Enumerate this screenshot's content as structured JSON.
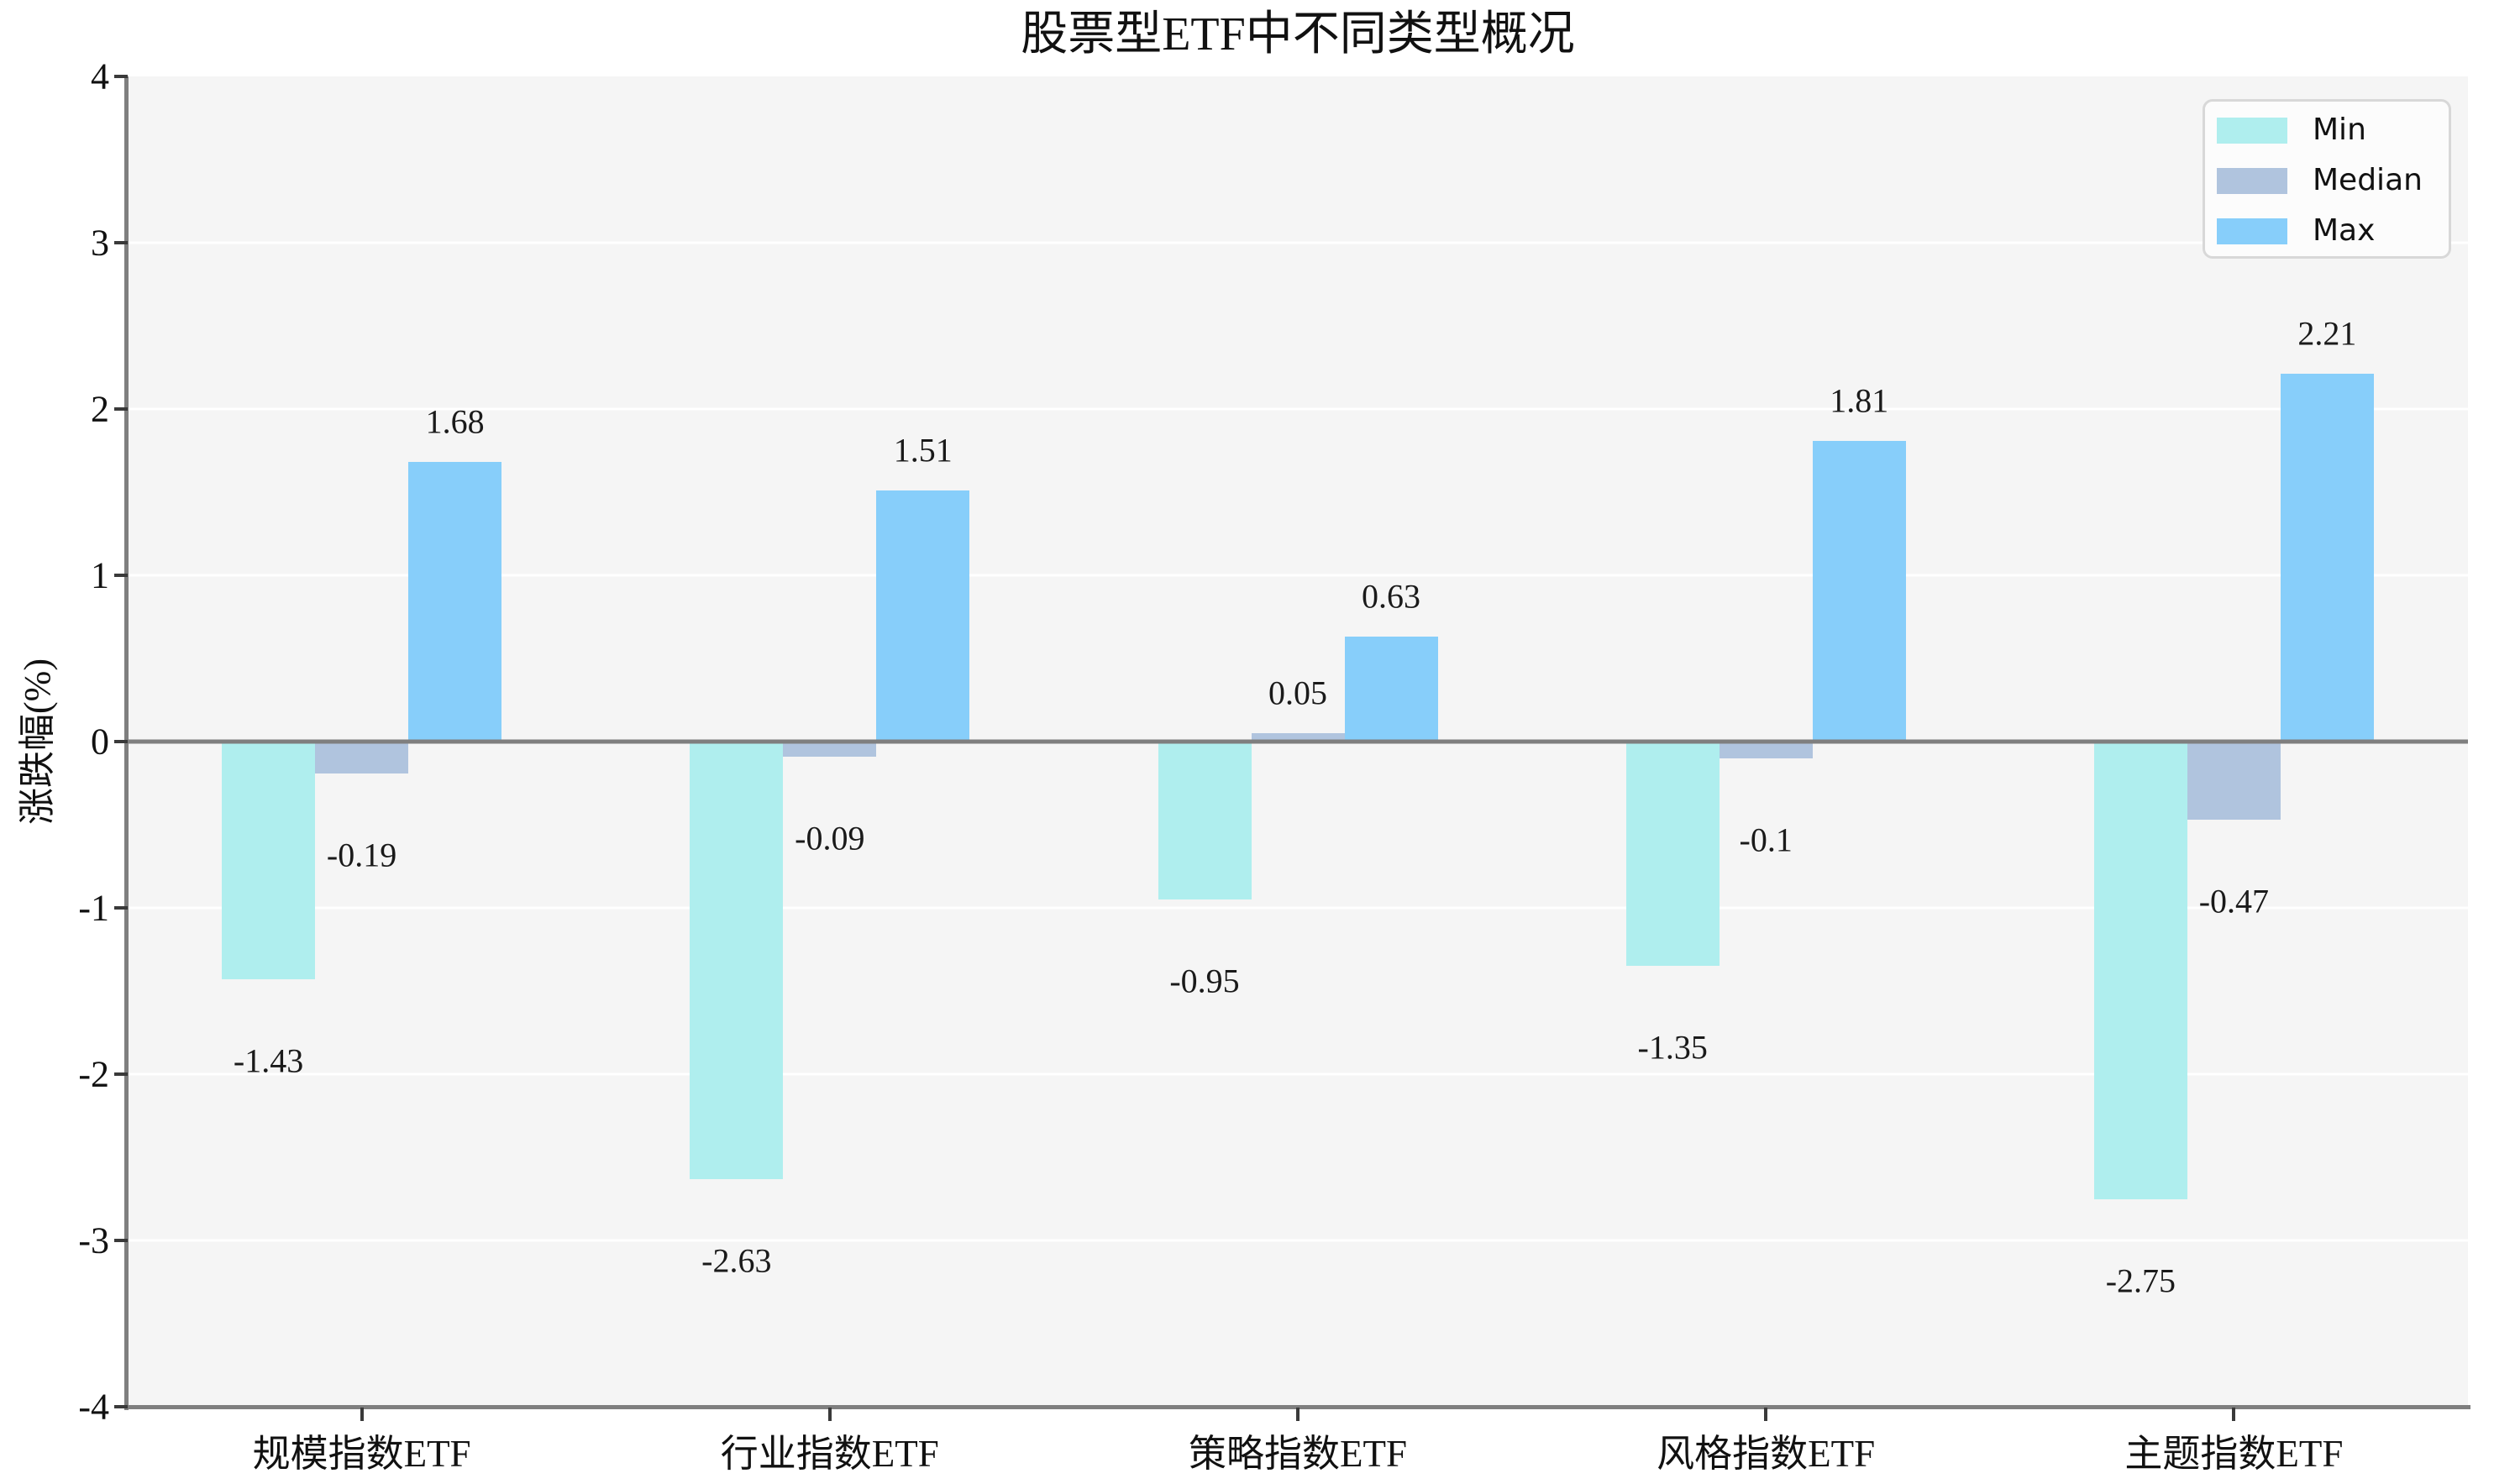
{
  "title": "股票型ETF中不同类型概况",
  "y_axis_label": "涨跌幅(%)",
  "axes": {
    "y_ticks": [
      "4",
      "3",
      "2",
      "1",
      "0",
      "-1",
      "-2",
      "-3",
      "-4"
    ],
    "ylim": [
      -4,
      4
    ]
  },
  "legend": {
    "position": "upper right",
    "items": [
      {
        "label": "Min",
        "color": "#AFEEEE"
      },
      {
        "label": "Median",
        "color": "#B0C4DE"
      },
      {
        "label": "Max",
        "color": "#87CEFA"
      }
    ]
  },
  "colors": {
    "plot_background": "#f5f5f5",
    "gridline": "#ffffff",
    "spine": "#7f7f7f",
    "zero_line": "#7f7f7f",
    "min_series": "#AFEEEE",
    "median_series": "#B0C4DE",
    "max_series": "#87CEFA"
  },
  "chart_data": {
    "type": "bar",
    "title": "股票型ETF中不同类型概况",
    "xlabel": "",
    "ylabel": "涨跌幅(%)",
    "categories": [
      "规模指数ETF",
      "行业指数ETF",
      "策略指数ETF",
      "风格指数ETF",
      "主题指数ETF"
    ],
    "series": [
      {
        "name": "Min",
        "color": "#AFEEEE",
        "values": [
          -1.43,
          -2.63,
          -0.95,
          -1.35,
          -2.75
        ]
      },
      {
        "name": "Median",
        "color": "#B0C4DE",
        "values": [
          -0.19,
          -0.09,
          0.05,
          -0.1,
          -0.47
        ]
      },
      {
        "name": "Max",
        "color": "#87CEFA",
        "values": [
          1.68,
          1.51,
          0.63,
          1.81,
          2.21
        ]
      }
    ],
    "value_labels": [
      [
        "-1.43",
        "-2.63",
        "-0.95",
        "-1.35",
        "-2.75"
      ],
      [
        "-0.19",
        "-0.09",
        "0.05",
        "-0.1",
        "-0.47"
      ],
      [
        "1.68",
        "1.51",
        "0.63",
        "1.81",
        "2.21"
      ]
    ],
    "ylim": [
      -4,
      4
    ],
    "grid": true,
    "legend_position": "upper right"
  }
}
